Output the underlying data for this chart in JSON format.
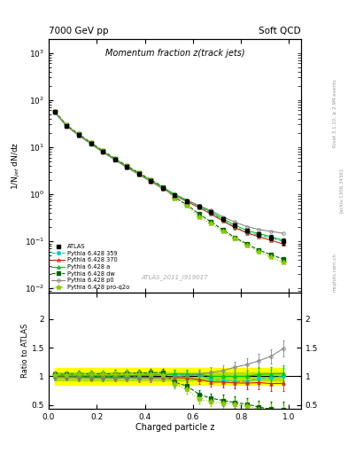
{
  "title_main": "Momentum fraction z(track jets)",
  "header_left": "7000 GeV pp",
  "header_right": "Soft QCD",
  "ylabel_main": "1/N$_{jet}$ dN/dz",
  "ylabel_ratio": "Ratio to ATLAS",
  "xlabel": "Charged particle z",
  "watermark": "ATLAS_2011_I919017",
  "rivet_label": "Rivet 3.1.10, ≥ 2.9M events",
  "arxiv_label": "[arXiv:1306.3436]",
  "mcplots_label": "mcplots.cern.ch",
  "ylim_main": [
    0.008,
    2000
  ],
  "ylim_ratio": [
    0.44,
    2.45
  ],
  "xlim": [
    0.0,
    1.05
  ],
  "z_centers": [
    0.025,
    0.075,
    0.125,
    0.175,
    0.225,
    0.275,
    0.325,
    0.375,
    0.425,
    0.475,
    0.525,
    0.575,
    0.625,
    0.675,
    0.725,
    0.775,
    0.825,
    0.875,
    0.925,
    0.975
  ],
  "atlas_y": [
    55.0,
    28.0,
    18.0,
    12.0,
    8.0,
    5.5,
    3.8,
    2.7,
    1.9,
    1.35,
    0.95,
    0.72,
    0.55,
    0.42,
    0.3,
    0.22,
    0.17,
    0.14,
    0.12,
    0.1
  ],
  "atlas_yerr": [
    3.0,
    1.5,
    1.0,
    0.7,
    0.5,
    0.35,
    0.25,
    0.18,
    0.13,
    0.09,
    0.07,
    0.055,
    0.04,
    0.035,
    0.028,
    0.022,
    0.018,
    0.016,
    0.015,
    0.014
  ],
  "py359_y": [
    55.5,
    28.2,
    18.1,
    12.1,
    8.05,
    5.52,
    3.82,
    2.72,
    1.93,
    1.38,
    0.98,
    0.74,
    0.56,
    0.4,
    0.28,
    0.2,
    0.155,
    0.135,
    0.118,
    0.1
  ],
  "py370_y": [
    55.0,
    27.8,
    17.8,
    11.8,
    7.85,
    5.4,
    3.72,
    2.64,
    1.86,
    1.32,
    0.93,
    0.7,
    0.52,
    0.38,
    0.27,
    0.195,
    0.15,
    0.125,
    0.105,
    0.088
  ],
  "pya_y": [
    55.5,
    28.2,
    18.1,
    12.1,
    8.05,
    5.55,
    3.85,
    2.74,
    1.95,
    1.39,
    0.99,
    0.75,
    0.57,
    0.42,
    0.3,
    0.22,
    0.17,
    0.145,
    0.125,
    0.105
  ],
  "pydw_y": [
    57.0,
    29.0,
    18.8,
    12.5,
    8.35,
    5.75,
    4.0,
    2.85,
    2.02,
    1.44,
    0.85,
    0.6,
    0.38,
    0.26,
    0.175,
    0.12,
    0.088,
    0.065,
    0.052,
    0.042
  ],
  "pyp0_y": [
    54.0,
    27.4,
    17.6,
    11.7,
    7.78,
    5.35,
    3.7,
    2.62,
    1.85,
    1.32,
    0.94,
    0.73,
    0.57,
    0.45,
    0.33,
    0.255,
    0.205,
    0.178,
    0.162,
    0.148
  ],
  "pyq2o_y": [
    56.5,
    28.8,
    18.6,
    12.4,
    8.25,
    5.7,
    3.96,
    2.81,
    1.96,
    1.38,
    0.82,
    0.56,
    0.33,
    0.235,
    0.16,
    0.112,
    0.082,
    0.06,
    0.046,
    0.036
  ],
  "band_green_lo": [
    0.93,
    0.93,
    0.93,
    0.93,
    0.93,
    0.93,
    0.93,
    0.93,
    0.93,
    0.93,
    0.93,
    0.93,
    0.93,
    0.93,
    0.93,
    0.93,
    0.93,
    0.93,
    0.93,
    0.93
  ],
  "band_green_hi": [
    1.07,
    1.07,
    1.07,
    1.07,
    1.07,
    1.07,
    1.07,
    1.07,
    1.07,
    1.07,
    1.07,
    1.07,
    1.07,
    1.07,
    1.07,
    1.07,
    1.07,
    1.07,
    1.07,
    1.07
  ],
  "band_yellow_lo": [
    0.85,
    0.85,
    0.85,
    0.85,
    0.85,
    0.85,
    0.85,
    0.85,
    0.85,
    0.85,
    0.85,
    0.85,
    0.85,
    0.85,
    0.85,
    0.85,
    0.85,
    0.85,
    0.85,
    0.85
  ],
  "band_yellow_hi": [
    1.15,
    1.15,
    1.15,
    1.15,
    1.15,
    1.15,
    1.15,
    1.15,
    1.15,
    1.15,
    1.15,
    1.15,
    1.15,
    1.15,
    1.15,
    1.15,
    1.15,
    1.15,
    1.15,
    1.15
  ],
  "color_atlas": "#000000",
  "color_359": "#00CCCC",
  "color_370": "#CC2200",
  "color_a": "#00CC00",
  "color_dw": "#006600",
  "color_p0": "#888888",
  "color_q2o": "#88CC00",
  "background": "#ffffff"
}
